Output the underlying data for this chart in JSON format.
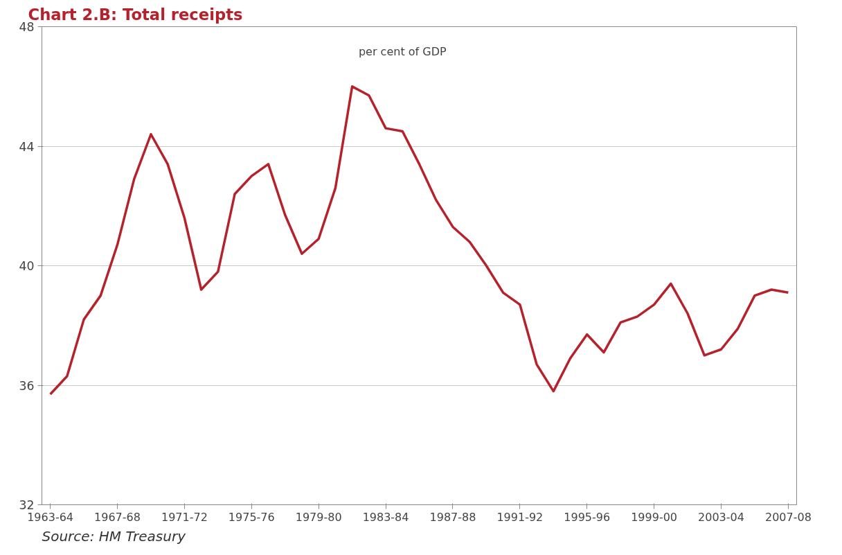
{
  "chart_data": {
    "type": "line",
    "title": "Chart 2.B: Total receipts",
    "annotations": [
      "per cent of GDP",
      "Source: HM Treasury"
    ],
    "categories": [
      "1963-64",
      null,
      null,
      null,
      "1967-68",
      null,
      null,
      null,
      "1971-72",
      null,
      null,
      null,
      "1975-76",
      null,
      null,
      null,
      "1979-80",
      null,
      null,
      null,
      "1983-84",
      null,
      null,
      null,
      "1987-88",
      null,
      null,
      null,
      "1991-92",
      null,
      null,
      null,
      "1995-96",
      null,
      null,
      null,
      "1999-00",
      null,
      null,
      null,
      "2003-04",
      null,
      null,
      null,
      "2007-08"
    ],
    "series": [
      {
        "color": "#b5222b",
        "values": [
          35.7,
          36.3,
          38.2,
          39.0,
          40.7,
          42.9,
          44.4,
          43.4,
          41.6,
          39.2,
          39.8,
          42.4,
          43.0,
          43.4,
          41.7,
          40.4,
          40.9,
          42.6,
          46.0,
          45.7,
          44.6,
          44.5,
          43.4,
          42.2,
          41.3,
          40.8,
          40.0,
          39.1,
          38.7,
          36.7,
          35.8,
          36.9,
          37.7,
          37.1,
          38.1,
          38.3,
          38.7,
          39.4,
          38.4,
          37.0,
          37.2,
          37.9,
          39.0,
          39.2,
          39.1
        ]
      }
    ],
    "ylim": [
      32,
      48
    ],
    "yticks": [
      32,
      36,
      40,
      44,
      48
    ],
    "grid": "y",
    "marker": "none",
    "line_style": "solid"
  }
}
